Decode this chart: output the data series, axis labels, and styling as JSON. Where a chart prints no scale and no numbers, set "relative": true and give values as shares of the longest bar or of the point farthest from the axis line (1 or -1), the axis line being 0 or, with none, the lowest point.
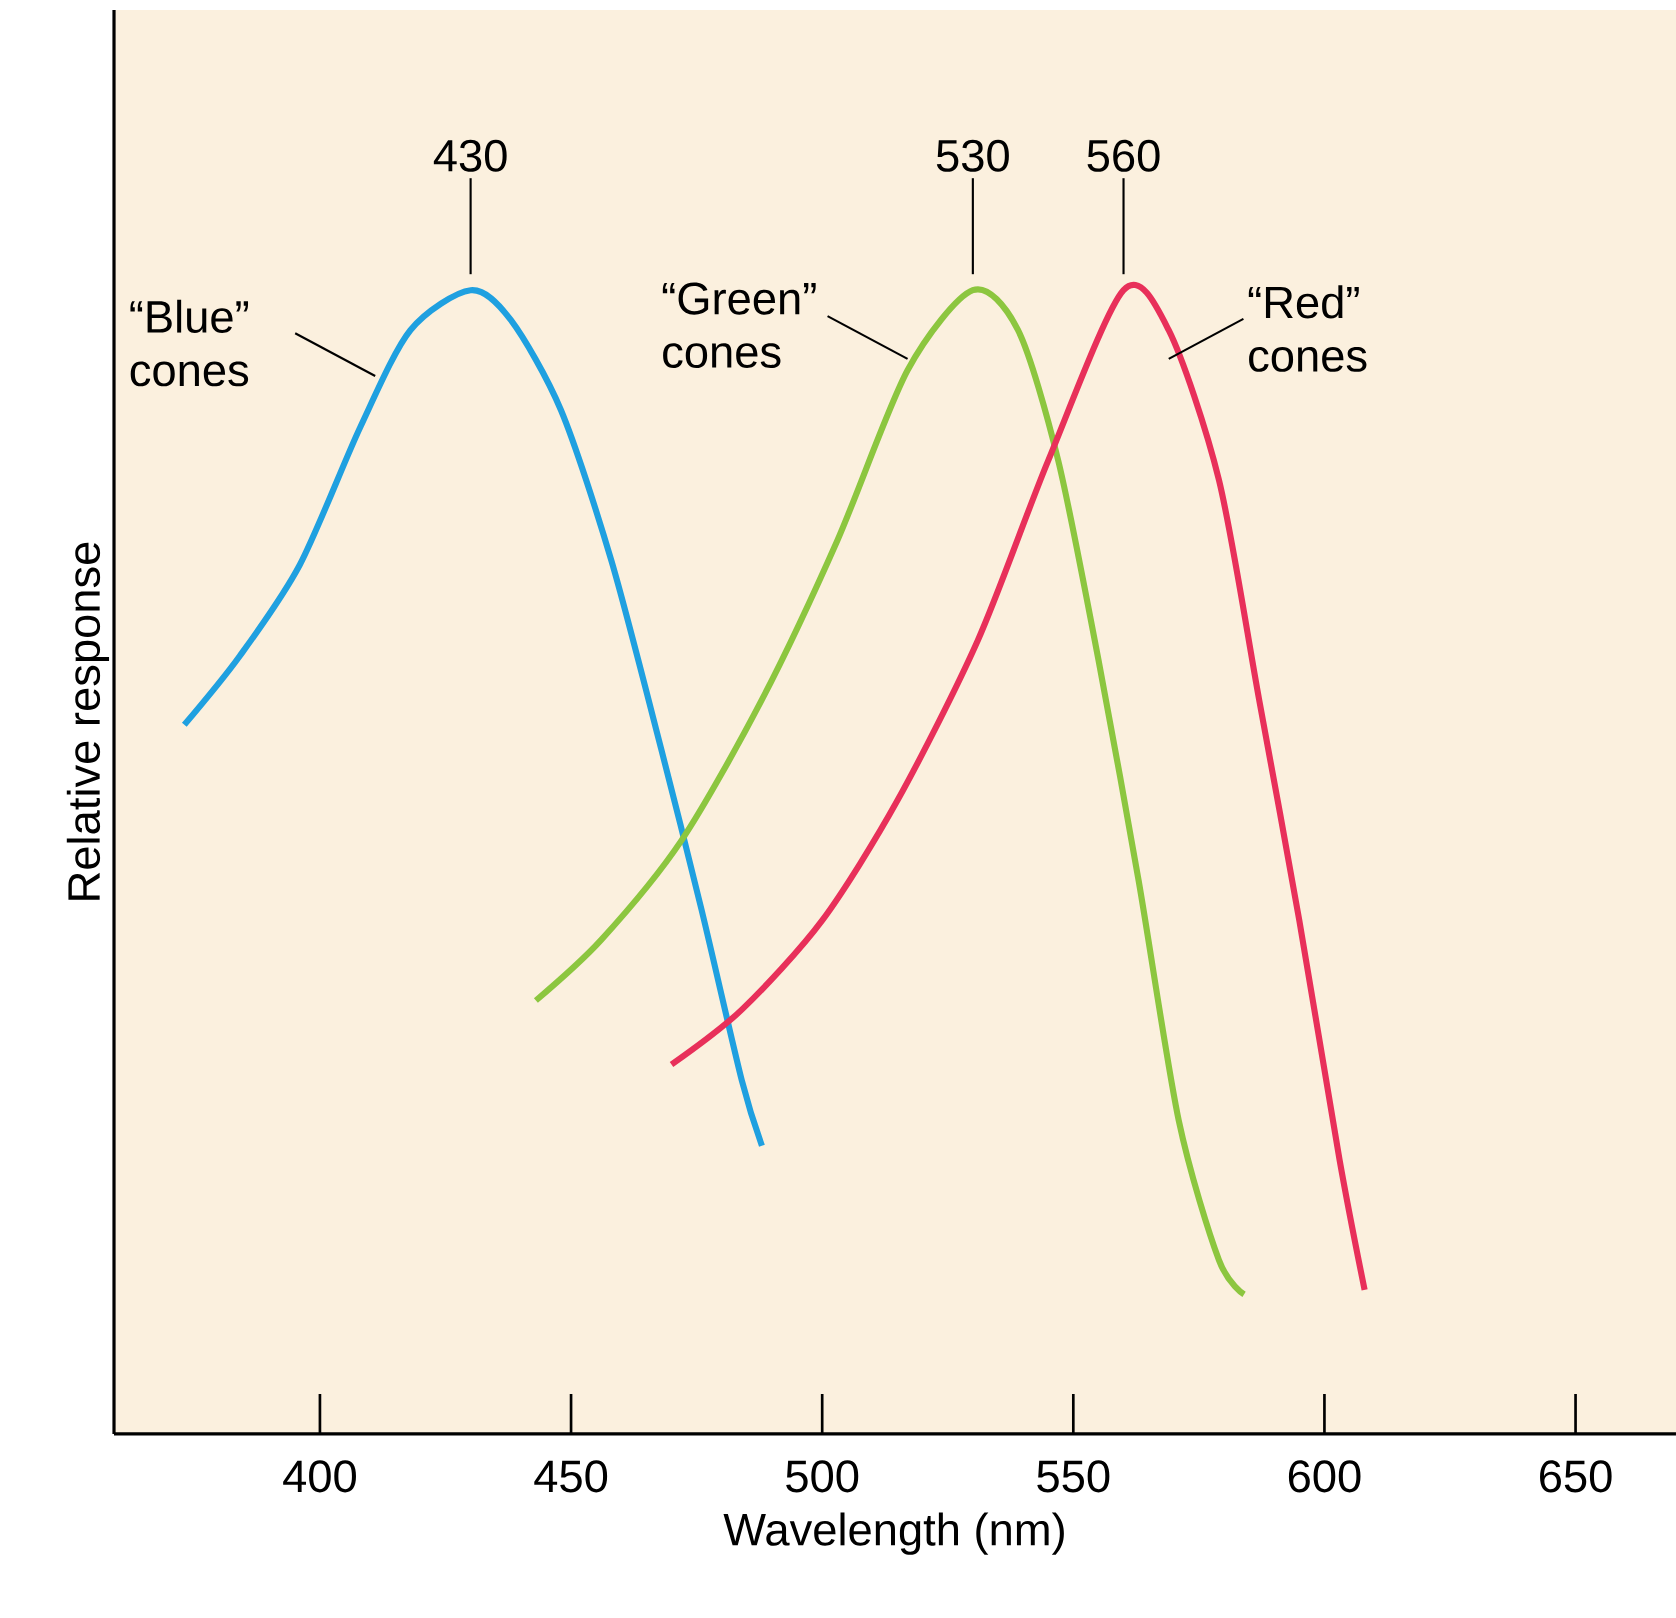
{
  "chart_data": {
    "type": "line",
    "relative": true,
    "xlabel": "Wavelength (nm)",
    "ylabel": "Relative response",
    "xlim": [
      359,
      670
    ],
    "xticks": [
      400,
      450,
      500,
      550,
      600,
      650
    ],
    "series": [
      {
        "color": "#1fa0e0",
        "x": [
          373,
          384,
          396,
          408,
          418,
          430,
          438,
          448,
          458,
          468,
          476,
          484,
          488
        ],
        "values": [
          0.62,
          0.68,
          0.76,
          0.88,
          0.965,
          1.0,
          0.974,
          0.895,
          0.764,
          0.598,
          0.458,
          0.309,
          0.252
        ]
      },
      {
        "color": "#8cc63f",
        "x": [
          443,
          456,
          472,
          488,
          503,
          517,
          530,
          539,
          547,
          555,
          563,
          571,
          579,
          584
        ],
        "values": [
          0.379,
          0.432,
          0.519,
          0.642,
          0.781,
          0.93,
          1.0,
          0.965,
          0.851,
          0.677,
          0.484,
          0.274,
          0.152,
          0.122
        ]
      },
      {
        "color": "#e8305a",
        "x": [
          470,
          484,
          500,
          515,
          531,
          545,
          560,
          569,
          579,
          587,
          595,
          603,
          608
        ],
        "values": [
          0.323,
          0.371,
          0.449,
          0.554,
          0.694,
          0.851,
          1.0,
          0.965,
          0.834,
          0.642,
          0.449,
          0.24,
          0.126
        ]
      }
    ],
    "annotations": [
      {
        "text": "430",
        "x": 430,
        "y": 1.0
      },
      {
        "text": "530",
        "x": 530,
        "y": 1.0
      },
      {
        "text": "560",
        "x": 560,
        "y": 1.0
      },
      {
        "text": "“Blue” cones",
        "x": 411,
        "y": 0.925
      },
      {
        "text": "“Green” cones",
        "x": 517,
        "y": 0.94
      },
      {
        "text": "“Red” cones",
        "x": 569,
        "y": 0.94
      }
    ]
  }
}
